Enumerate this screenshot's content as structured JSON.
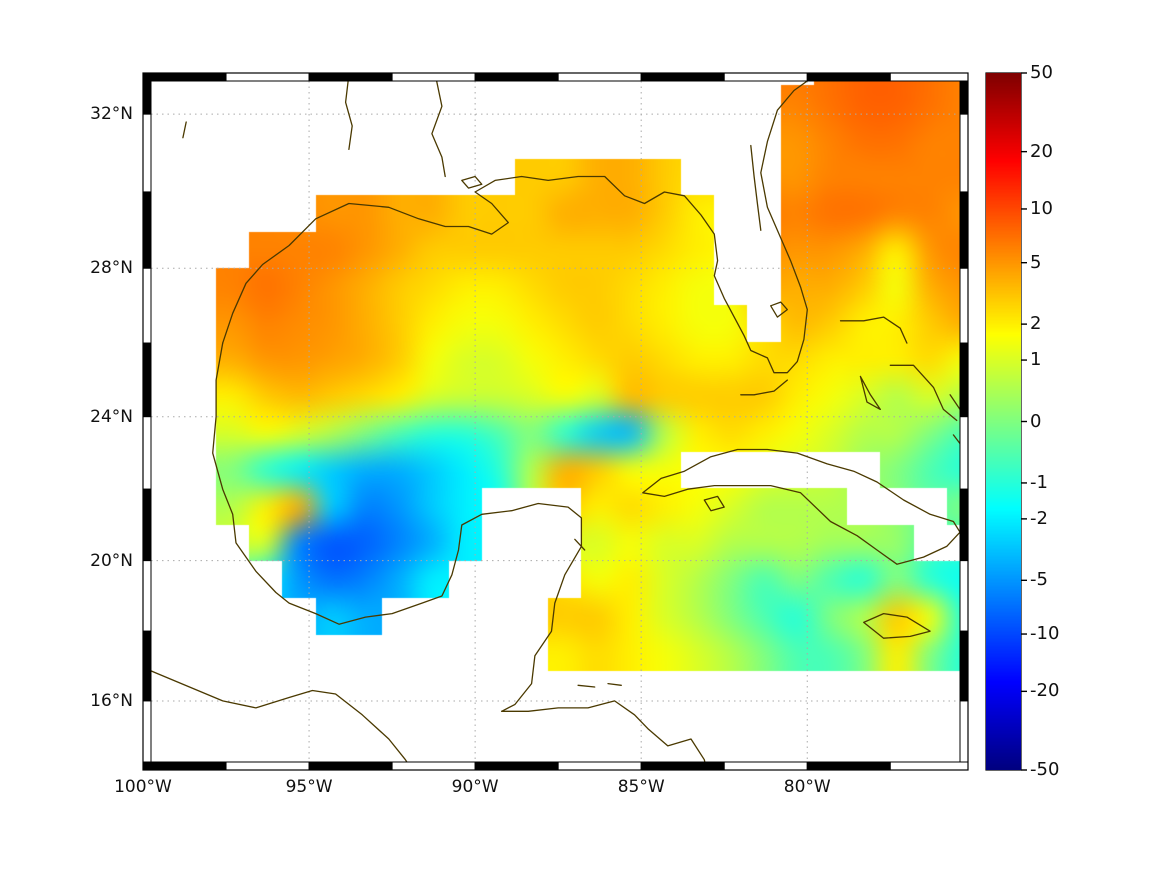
{
  "figure": {
    "background": "#ffffff"
  },
  "axes": {
    "lat": {
      "labels": [
        "32°N",
        "28°N",
        "24°N",
        "20°N",
        "16°N"
      ],
      "values": [
        32,
        28,
        24,
        20,
        16
      ]
    },
    "lon": {
      "labels": [
        "100°W",
        "95°W",
        "90°W",
        "85°W",
        "80°W"
      ],
      "values": [
        -100,
        -95,
        -90,
        -85,
        -80
      ]
    }
  },
  "colorbar": {
    "tick_labels": [
      "50",
      "20",
      "10",
      "5",
      "2",
      "1",
      "0",
      "-1",
      "-2",
      "-5",
      "-10",
      "-20",
      "-50"
    ],
    "tick_values": [
      50,
      20,
      10,
      5,
      2,
      1,
      0,
      -1,
      -2,
      -5,
      -10,
      -20,
      -50
    ],
    "scale": "symlog",
    "colormap": "jet",
    "vmin": -50,
    "vmax": 50
  },
  "chart_data": {
    "type": "heatmap",
    "title": "",
    "colormap": "jet",
    "scale": "symlog",
    "lon_start": -100.3,
    "lon_step": 1.0,
    "lat_start": 33.2,
    "lat_step": -1.0,
    "extent": {
      "lon": [
        -100,
        -75.16
      ],
      "lat": [
        14.0,
        33.04
      ]
    },
    "values": [
      [
        null,
        null,
        null,
        null,
        null,
        null,
        null,
        null,
        null,
        null,
        null,
        null,
        null,
        null,
        null,
        null,
        null,
        null,
        null,
        null,
        null,
        7,
        8,
        8,
        7,
        6
      ],
      [
        null,
        null,
        null,
        null,
        null,
        null,
        null,
        null,
        null,
        null,
        null,
        null,
        null,
        null,
        null,
        null,
        null,
        null,
        null,
        null,
        6,
        7,
        8,
        8,
        7,
        6
      ],
      [
        null,
        null,
        null,
        null,
        null,
        null,
        null,
        null,
        null,
        null,
        null,
        null,
        null,
        null,
        null,
        null,
        null,
        null,
        null,
        null,
        5,
        6,
        7,
        7,
        6,
        6
      ],
      [
        null,
        null,
        null,
        null,
        null,
        null,
        null,
        null,
        null,
        null,
        null,
        null,
        3,
        3,
        4,
        4,
        3,
        null,
        null,
        null,
        5,
        6,
        6,
        6,
        6,
        6
      ],
      [
        null,
        null,
        null,
        null,
        null,
        null,
        5,
        5,
        4,
        4,
        3,
        3,
        3,
        4,
        4,
        4,
        3,
        2,
        null,
        null,
        6,
        7,
        7,
        6,
        6,
        5
      ],
      [
        null,
        null,
        null,
        null,
        6,
        6,
        6,
        5,
        4,
        3,
        3,
        3,
        3,
        3,
        3,
        3,
        2.5,
        2,
        null,
        null,
        5,
        5,
        4,
        2,
        5,
        6
      ],
      [
        null,
        null,
        null,
        6,
        7,
        6,
        5,
        4,
        3,
        2.5,
        2,
        2,
        2.5,
        3,
        3,
        2.5,
        2,
        1.5,
        null,
        null,
        4,
        4,
        3,
        1.5,
        4,
        5
      ],
      [
        null,
        null,
        null,
        5,
        6,
        5.5,
        5,
        4,
        3,
        2,
        1.5,
        1.5,
        2,
        2.5,
        3,
        2.5,
        2,
        1.5,
        1.5,
        null,
        3.5,
        3,
        2,
        2,
        3,
        4
      ],
      [
        null,
        null,
        null,
        4,
        5,
        5,
        4.5,
        4,
        3,
        1.5,
        1,
        1,
        1.5,
        2,
        2.5,
        3,
        2.5,
        2,
        2,
        2.5,
        2.5,
        2,
        2,
        2,
        2.5,
        1.5
      ],
      [
        null,
        null,
        null,
        2,
        3,
        3.5,
        3,
        2.5,
        2,
        1,
        0.8,
        0.8,
        1,
        1.5,
        1,
        3.5,
        3,
        3,
        3,
        3,
        2,
        1.5,
        1,
        0.5,
        1,
        0.5
      ],
      [
        null,
        null,
        null,
        1,
        1.5,
        1,
        0.5,
        0,
        -0.5,
        -1,
        -1,
        -0.5,
        0,
        -1,
        -3,
        -3.5,
        0.5,
        2,
        2.5,
        2,
        1.5,
        1,
        0.5,
        0.5,
        0,
        -0.5
      ],
      [
        null,
        null,
        null,
        0,
        -1,
        -2,
        -3,
        -4,
        -4,
        -3,
        -2,
        -1,
        0.5,
        4,
        3,
        1.5,
        1.5,
        null,
        null,
        null,
        null,
        null,
        null,
        0,
        -0.5,
        -1
      ],
      [
        null,
        null,
        null,
        0.5,
        2,
        4,
        -3,
        -6,
        -5,
        -3,
        -2,
        null,
        null,
        null,
        2,
        2.5,
        2,
        1.5,
        1,
        0.5,
        0.5,
        0.5,
        null,
        null,
        null,
        0
      ],
      [
        null,
        null,
        null,
        null,
        1,
        -6,
        -9,
        -8,
        -6,
        -4,
        -2,
        null,
        null,
        null,
        1,
        1.5,
        1,
        1,
        0.5,
        0.5,
        0.5,
        0.3,
        0.3,
        0.2,
        null,
        null
      ],
      [
        null,
        null,
        null,
        null,
        null,
        -5,
        -7,
        -6,
        -4,
        -2,
        null,
        null,
        null,
        null,
        1.5,
        2,
        1,
        0.5,
        0,
        -0.5,
        0,
        -0.5,
        -1,
        0,
        -1,
        -1.5
      ],
      [
        null,
        null,
        null,
        null,
        null,
        null,
        -3,
        -4,
        null,
        null,
        null,
        null,
        null,
        3,
        3,
        2,
        1,
        0.5,
        0,
        -0.5,
        -1,
        0,
        0.5,
        3,
        1.5,
        -1
      ],
      [
        null,
        null,
        null,
        null,
        null,
        null,
        null,
        null,
        null,
        null,
        null,
        null,
        null,
        2,
        2.5,
        2,
        1.5,
        1,
        0.5,
        0,
        -0.5,
        -0.5,
        0,
        2,
        0,
        -1
      ],
      [
        null,
        null,
        null,
        null,
        null,
        null,
        null,
        null,
        null,
        null,
        null,
        null,
        null,
        null,
        null,
        null,
        null,
        null,
        null,
        null,
        null,
        null,
        null,
        null,
        null,
        null
      ],
      [
        null,
        null,
        null,
        null,
        null,
        null,
        null,
        null,
        null,
        null,
        null,
        null,
        null,
        null,
        null,
        null,
        null,
        null,
        null,
        null,
        null,
        null,
        null,
        null,
        null,
        null
      ],
      [
        null,
        null,
        null,
        null,
        null,
        null,
        null,
        null,
        null,
        null,
        null,
        null,
        null,
        null,
        null,
        null,
        null,
        null,
        null,
        null,
        null,
        null,
        null,
        null,
        null,
        null
      ]
    ]
  },
  "map": {
    "coast_color": "#4a3900",
    "grid_color": "#aaaaaa",
    "frame_colors": [
      "#000000",
      "#ffffff"
    ],
    "coastlines": [
      [
        [
          -97.6,
          26.0
        ],
        [
          -97.3,
          26.8
        ],
        [
          -96.9,
          27.6
        ],
        [
          -96.4,
          28.1
        ],
        [
          -95.6,
          28.6
        ],
        [
          -94.8,
          29.3
        ],
        [
          -93.8,
          29.7
        ],
        [
          -92.6,
          29.6
        ],
        [
          -91.7,
          29.3
        ],
        [
          -90.9,
          29.1
        ],
        [
          -90.2,
          29.1
        ],
        [
          -89.5,
          28.9
        ],
        [
          -89.0,
          29.2
        ],
        [
          -89.5,
          29.7
        ],
        [
          -90.0,
          30.0
        ],
        [
          -89.4,
          30.3
        ],
        [
          -88.6,
          30.4
        ],
        [
          -87.8,
          30.3
        ],
        [
          -86.9,
          30.4
        ],
        [
          -86.1,
          30.4
        ],
        [
          -85.5,
          29.9
        ],
        [
          -84.9,
          29.7
        ],
        [
          -84.3,
          30.0
        ],
        [
          -83.7,
          29.9
        ],
        [
          -83.2,
          29.4
        ],
        [
          -82.8,
          28.9
        ],
        [
          -82.7,
          28.2
        ],
        [
          -82.8,
          27.8
        ],
        [
          -82.5,
          27.2
        ],
        [
          -82.2,
          26.7
        ],
        [
          -81.9,
          26.2
        ],
        [
          -81.7,
          25.8
        ],
        [
          -81.2,
          25.6
        ],
        [
          -81.0,
          25.2
        ],
        [
          -80.6,
          25.2
        ],
        [
          -80.3,
          25.5
        ],
        [
          -80.1,
          26.1
        ],
        [
          -80.0,
          26.9
        ],
        [
          -80.2,
          27.5
        ],
        [
          -80.5,
          28.2
        ],
        [
          -80.7,
          28.6
        ],
        [
          -81.2,
          29.6
        ],
        [
          -81.4,
          30.5
        ],
        [
          -81.2,
          31.3
        ],
        [
          -80.9,
          32.1
        ],
        [
          -80.4,
          32.6
        ],
        [
          -79.9,
          32.9
        ]
      ],
      [
        [
          -80.6,
          25.0
        ],
        [
          -81.0,
          24.7
        ],
        [
          -81.6,
          24.6
        ],
        [
          -82.0,
          24.6
        ]
      ],
      [
        [
          -97.6,
          26.0
        ],
        [
          -97.8,
          25.0
        ],
        [
          -97.8,
          24.0
        ],
        [
          -97.9,
          23.0
        ],
        [
          -97.6,
          22.0
        ],
        [
          -97.3,
          21.3
        ],
        [
          -97.2,
          20.5
        ],
        [
          -96.6,
          19.7
        ],
        [
          -96.0,
          19.1
        ],
        [
          -95.6,
          18.8
        ],
        [
          -94.8,
          18.5
        ],
        [
          -94.1,
          18.2
        ],
        [
          -93.3,
          18.4
        ],
        [
          -92.5,
          18.5
        ],
        [
          -91.6,
          18.8
        ],
        [
          -91.0,
          19.0
        ],
        [
          -90.7,
          19.6
        ],
        [
          -90.5,
          20.3
        ],
        [
          -90.4,
          21.0
        ],
        [
          -89.8,
          21.3
        ],
        [
          -88.9,
          21.4
        ],
        [
          -88.1,
          21.6
        ],
        [
          -87.2,
          21.5
        ],
        [
          -86.8,
          21.2
        ],
        [
          -86.8,
          20.4
        ],
        [
          -87.3,
          19.6
        ],
        [
          -87.6,
          18.8
        ],
        [
          -87.7,
          18.0
        ],
        [
          -88.2,
          17.3
        ],
        [
          -88.3,
          16.5
        ],
        [
          -88.8,
          15.9
        ],
        [
          -89.2,
          15.7
        ]
      ],
      [
        [
          -100.6,
          17.2
        ],
        [
          -99.6,
          16.8
        ],
        [
          -98.6,
          16.4
        ],
        [
          -97.6,
          16.0
        ],
        [
          -96.6,
          15.8
        ],
        [
          -95.6,
          16.1
        ],
        [
          -94.9,
          16.3
        ],
        [
          -94.2,
          16.2
        ],
        [
          -93.4,
          15.6
        ],
        [
          -92.6,
          14.9
        ],
        [
          -92.1,
          14.3
        ],
        [
          -91.9,
          14.0
        ]
      ],
      [
        [
          -89.2,
          15.7
        ],
        [
          -88.4,
          15.7
        ],
        [
          -87.5,
          15.8
        ],
        [
          -86.6,
          15.8
        ],
        [
          -85.8,
          16.0
        ],
        [
          -85.2,
          15.6
        ],
        [
          -84.8,
          15.2
        ],
        [
          -84.2,
          14.7
        ],
        [
          -83.5,
          14.9
        ],
        [
          -83.1,
          14.3
        ],
        [
          -83.0,
          13.9
        ]
      ],
      [
        [
          -84.95,
          21.9
        ],
        [
          -84.4,
          22.3
        ],
        [
          -83.7,
          22.5
        ],
        [
          -82.9,
          22.9
        ],
        [
          -82.1,
          23.1
        ],
        [
          -81.2,
          23.1
        ],
        [
          -80.3,
          23.0
        ],
        [
          -79.4,
          22.7
        ],
        [
          -78.6,
          22.5
        ],
        [
          -77.9,
          22.2
        ],
        [
          -77.1,
          21.7
        ],
        [
          -76.3,
          21.3
        ],
        [
          -75.6,
          21.1
        ],
        [
          -75.4,
          20.8
        ],
        [
          -75.8,
          20.4
        ],
        [
          -76.5,
          20.1
        ],
        [
          -77.3,
          19.9
        ],
        [
          -77.9,
          20.3
        ],
        [
          -78.5,
          20.7
        ],
        [
          -79.3,
          21.1
        ],
        [
          -80.2,
          21.9
        ],
        [
          -81.1,
          22.1
        ],
        [
          -82.0,
          22.1
        ],
        [
          -82.8,
          22.1
        ],
        [
          -83.6,
          22.0
        ],
        [
          -84.3,
          21.8
        ],
        [
          -84.95,
          21.9
        ]
      ],
      [
        [
          -83.1,
          21.7
        ],
        [
          -82.7,
          21.8
        ],
        [
          -82.5,
          21.5
        ],
        [
          -82.9,
          21.4
        ],
        [
          -83.1,
          21.7
        ]
      ],
      [
        [
          -78.3,
          18.25
        ],
        [
          -77.7,
          18.5
        ],
        [
          -77.0,
          18.4
        ],
        [
          -76.3,
          18.0
        ],
        [
          -76.9,
          17.85
        ],
        [
          -77.7,
          17.8
        ],
        [
          -78.3,
          18.25
        ]
      ],
      [
        [
          -79.0,
          26.6
        ],
        [
          -78.3,
          26.6
        ],
        [
          -77.7,
          26.7
        ],
        [
          -77.2,
          26.4
        ],
        [
          -77.0,
          26.0
        ]
      ],
      [
        [
          -78.4,
          25.1
        ],
        [
          -78.1,
          24.6
        ],
        [
          -77.8,
          24.2
        ],
        [
          -78.2,
          24.4
        ],
        [
          -78.4,
          25.1
        ]
      ],
      [
        [
          -77.5,
          25.4
        ],
        [
          -76.8,
          25.4
        ],
        [
          -76.2,
          24.8
        ],
        [
          -75.9,
          24.2
        ],
        [
          -75.5,
          23.9
        ]
      ],
      [
        [
          -75.6,
          23.5
        ],
        [
          -75.1,
          22.9
        ]
      ],
      [
        [
          -75.7,
          24.6
        ],
        [
          -75.4,
          24.2
        ]
      ],
      [
        [
          -75.2,
          19.9
        ],
        [
          -74.9,
          19.7
        ],
        [
          -74.8,
          19.4
        ]
      ],
      [
        [
          -74.9,
          18.6
        ],
        [
          -75.2,
          18.4
        ],
        [
          -74.8,
          18.2
        ]
      ],
      [
        [
          -87.0,
          20.6
        ],
        [
          -86.7,
          20.3
        ]
      ],
      [
        [
          -81.1,
          27.0
        ],
        [
          -80.8,
          27.1
        ],
        [
          -80.6,
          26.9
        ],
        [
          -80.9,
          26.7
        ],
        [
          -81.1,
          27.0
        ]
      ],
      [
        [
          -90.4,
          30.3
        ],
        [
          -90.0,
          30.4
        ],
        [
          -89.8,
          30.2
        ],
        [
          -90.2,
          30.1
        ],
        [
          -90.4,
          30.3
        ]
      ],
      [
        [
          -93.8,
          33.0
        ],
        [
          -93.9,
          32.3
        ],
        [
          -93.7,
          31.7
        ],
        [
          -93.8,
          31.1
        ]
      ],
      [
        [
          -91.2,
          33.0
        ],
        [
          -91.0,
          32.2
        ],
        [
          -91.3,
          31.5
        ],
        [
          -91.0,
          30.9
        ],
        [
          -90.9,
          30.4
        ]
      ],
      [
        [
          -81.7,
          31.2
        ],
        [
          -81.6,
          30.4
        ],
        [
          -81.5,
          29.7
        ],
        [
          -81.4,
          29.0
        ]
      ],
      [
        [
          -98.7,
          31.8
        ],
        [
          -98.8,
          31.4
        ]
      ],
      [
        [
          -86.9,
          16.45
        ],
        [
          -86.4,
          16.4
        ]
      ],
      [
        [
          -86.0,
          16.5
        ],
        [
          -85.6,
          16.45
        ]
      ]
    ]
  }
}
